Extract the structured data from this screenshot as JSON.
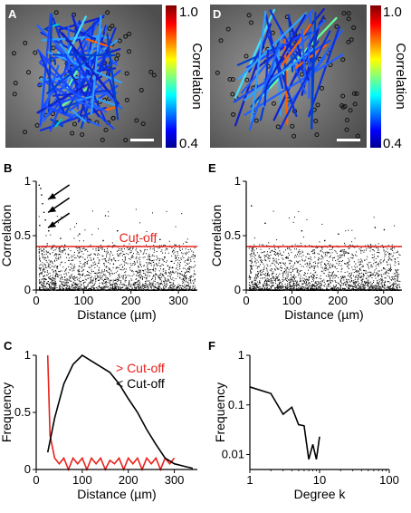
{
  "panels": {
    "A": {
      "label": "A"
    },
    "B": {
      "label": "B"
    },
    "C": {
      "label": "C"
    },
    "D": {
      "label": "D"
    },
    "E": {
      "label": "E"
    },
    "F": {
      "label": "F"
    }
  },
  "colors": {
    "cutoff_red": "#e8201a",
    "below_black": "#000000",
    "above_red": "#e8201a",
    "image_bg": "#7a7a7a"
  },
  "colorbar_A": {
    "label": "Correlation",
    "max_label": "1.0",
    "min_label": "0.4"
  },
  "colorbar_D": {
    "label": "Correlation",
    "max_label": "1.0",
    "min_label": "0.4"
  },
  "chart_data": [
    {
      "id": "B",
      "type": "scatter",
      "xlabel": "Distance (µm)",
      "ylabel": "Correlation",
      "xlim": [
        0,
        340
      ],
      "ylim": [
        0,
        1
      ],
      "xticks": [
        "0",
        "100",
        "200",
        "300"
      ],
      "yticks": [
        "0",
        "0.5",
        "1"
      ],
      "annotation": "Cut-off",
      "cutoff": 0.4,
      "description_points": "dense cloud below 0.4, sparse points up to 1.0 at short distances",
      "outliers": [
        [
          5,
          0.97
        ],
        [
          8,
          0.94
        ],
        [
          10,
          0.88
        ],
        [
          12,
          0.8
        ],
        [
          15,
          0.72
        ],
        [
          18,
          0.65
        ],
        [
          6,
          0.6
        ],
        [
          25,
          0.55
        ],
        [
          50,
          0.48
        ],
        [
          90,
          0.52
        ],
        [
          140,
          0.46
        ],
        [
          170,
          0.55
        ],
        [
          210,
          0.44
        ],
        [
          260,
          0.47
        ]
      ]
    },
    {
      "id": "C",
      "type": "line",
      "xlabel": "Distance (µm)",
      "ylabel": "Frequency",
      "xlim": [
        0,
        350
      ],
      "ylim": [
        0,
        1
      ],
      "xticks": [
        "0",
        "100",
        "200",
        "300"
      ],
      "yticks": [
        "0",
        "0.5",
        "1"
      ],
      "series": [
        {
          "name": "> Cut-off",
          "color": "#e8201a",
          "x": [
            25,
            30,
            40,
            50,
            60,
            70,
            80,
            90,
            100,
            110,
            120,
            130,
            140,
            150,
            160,
            170,
            180,
            190,
            200,
            210,
            220,
            230,
            240,
            250,
            260,
            270,
            280,
            290,
            300
          ],
          "y": [
            1.0,
            0.3,
            0.1,
            0.05,
            0.1,
            0.0,
            0.1,
            0.05,
            0.1,
            0.0,
            0.1,
            0.05,
            0.1,
            0.0,
            0.08,
            0.05,
            0.1,
            0.0,
            0.1,
            0.05,
            0.1,
            0.0,
            0.1,
            0.05,
            0.1,
            0.0,
            0.1,
            0.05,
            0.1
          ]
        },
        {
          "name": "< Cut-off",
          "color": "#000000",
          "x": [
            25,
            40,
            60,
            80,
            100,
            120,
            140,
            160,
            180,
            200,
            220,
            240,
            260,
            280,
            300,
            320,
            340
          ],
          "y": [
            0.15,
            0.45,
            0.75,
            0.92,
            1.0,
            0.95,
            0.9,
            0.85,
            0.75,
            0.62,
            0.5,
            0.35,
            0.22,
            0.1,
            0.05,
            0.03,
            0.01
          ]
        }
      ]
    },
    {
      "id": "E",
      "type": "scatter",
      "xlabel": "Distance (µm)",
      "ylabel": "Correlation",
      "xlim": [
        0,
        340
      ],
      "ylim": [
        0,
        1
      ],
      "xticks": [
        "0",
        "100",
        "200",
        "300"
      ],
      "yticks": [
        "0",
        "0.5",
        "1"
      ],
      "cutoff": 0.4,
      "outliers": [
        [
          10,
          0.78
        ],
        [
          40,
          0.62
        ],
        [
          120,
          0.55
        ],
        [
          200,
          0.52
        ],
        [
          280,
          0.58
        ],
        [
          300,
          0.56
        ],
        [
          170,
          0.46
        ]
      ]
    },
    {
      "id": "F",
      "type": "line",
      "log_scale": "both",
      "xlabel": "Degree k",
      "ylabel": "Frequency",
      "xlim": [
        1,
        100
      ],
      "ylim": [
        0.005,
        1
      ],
      "xticks": [
        "1",
        "10",
        "100"
      ],
      "yticks": [
        "0.01",
        "0.1",
        "1"
      ],
      "series": [
        {
          "name": "",
          "color": "#000000",
          "x": [
            1,
            2,
            3,
            4,
            5,
            6,
            7,
            8,
            9,
            10
          ],
          "y": [
            0.23,
            0.17,
            0.065,
            0.09,
            0.04,
            0.038,
            0.008,
            0.016,
            0.008,
            0.023
          ]
        }
      ]
    }
  ]
}
